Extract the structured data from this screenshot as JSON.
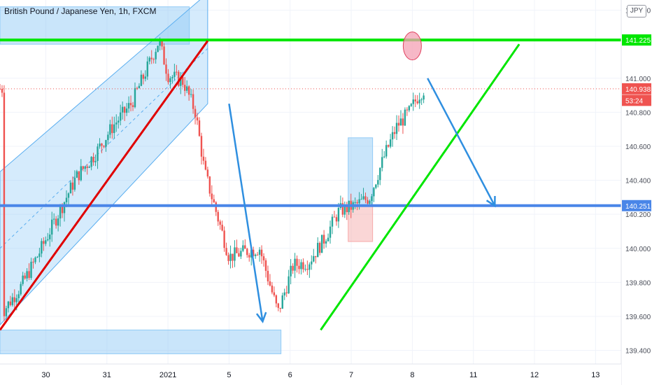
{
  "title": "British Pound / Japanese Yen, 1h, FXCM",
  "currency_badge": "JPY",
  "chart_data": {
    "type": "candlestick",
    "symbol": "British Pound / Japanese Yen",
    "timeframe": "1h",
    "source": "FXCM",
    "ylim": [
      139.32,
      141.46
    ],
    "y_ticks": [
      "141.400",
      "141.000",
      "140.800",
      "140.600",
      "140.400",
      "140.200",
      "140.000",
      "139.800",
      "139.600",
      "139.400"
    ],
    "x_ticks": [
      {
        "label": "30",
        "day": 30
      },
      {
        "label": "31",
        "day": 31
      },
      {
        "label": "2021",
        "day": 32
      },
      {
        "label": "5",
        "day": 33
      },
      {
        "label": "6",
        "day": 34
      },
      {
        "label": "7",
        "day": 35
      },
      {
        "label": "8",
        "day": 36
      },
      {
        "label": "11",
        "day": 37
      },
      {
        "label": "12",
        "day": 38
      },
      {
        "label": "13",
        "day": 39
      }
    ],
    "price_tags": [
      {
        "label": "141.225",
        "value": 141.225,
        "color": "#00e600"
      },
      {
        "label": "140.938",
        "value": 140.938,
        "color": "#ef5350"
      },
      {
        "label": "53:24",
        "value": 140.87,
        "color": "#ef5350"
      },
      {
        "label": "140.251",
        "value": 140.251,
        "color": "#4a86e8"
      }
    ],
    "series": [
      {
        "x": 29.3,
        "y": 139.63
      },
      {
        "x": 29.6,
        "y": 139.78
      },
      {
        "x": 29.9,
        "y": 139.98
      },
      {
        "x": 30.2,
        "y": 140.2
      },
      {
        "x": 30.5,
        "y": 140.42
      },
      {
        "x": 30.8,
        "y": 140.55
      },
      {
        "x": 31.1,
        "y": 140.72
      },
      {
        "x": 31.4,
        "y": 140.85
      },
      {
        "x": 31.65,
        "y": 141.05
      },
      {
        "x": 31.85,
        "y": 141.22
      },
      {
        "x": 32.0,
        "y": 141.02
      },
      {
        "x": 32.25,
        "y": 140.98
      },
      {
        "x": 32.45,
        "y": 140.8
      },
      {
        "x": 32.6,
        "y": 140.45
      },
      {
        "x": 32.8,
        "y": 140.2
      },
      {
        "x": 33.0,
        "y": 139.95
      },
      {
        "x": 33.25,
        "y": 139.98
      },
      {
        "x": 33.5,
        "y": 140.0
      },
      {
        "x": 33.8,
        "y": 139.62
      },
      {
        "x": 34.05,
        "y": 139.9
      },
      {
        "x": 34.3,
        "y": 139.92
      },
      {
        "x": 34.55,
        "y": 140.05
      },
      {
        "x": 34.8,
        "y": 140.22
      },
      {
        "x": 35.05,
        "y": 140.25
      },
      {
        "x": 35.3,
        "y": 140.3
      },
      {
        "x": 35.55,
        "y": 140.55
      },
      {
        "x": 35.75,
        "y": 140.72
      },
      {
        "x": 35.95,
        "y": 140.8
      },
      {
        "x": 36.1,
        "y": 140.9
      },
      {
        "x": 36.2,
        "y": 140.938
      }
    ],
    "ohlc_x_range": [
      29.25,
      36.2
    ],
    "horizontal_lines": [
      {
        "name": "resistance",
        "value": 141.225,
        "color": "#00e600"
      },
      {
        "name": "support",
        "value": 140.251,
        "color": "#4a86e8"
      },
      {
        "name": "last-price",
        "value": 140.938,
        "color": "#ef5350",
        "dotted": true
      }
    ],
    "trend_lines": [
      {
        "name": "red-trendline",
        "from": [
          29.25,
          139.52
        ],
        "to": [
          32.65,
          141.22
        ],
        "color": "#e00000"
      },
      {
        "name": "green-trendline",
        "from": [
          34.5,
          139.52
        ],
        "to": [
          37.75,
          141.2
        ],
        "color": "#00e600"
      }
    ],
    "arrows": [
      {
        "name": "drop-arrow",
        "from": [
          33.0,
          140.85
        ],
        "to": [
          33.55,
          139.57
        ],
        "color": "#2f8fe0"
      },
      {
        "name": "projection-arrow",
        "from": [
          36.25,
          141.0
        ],
        "to": [
          37.35,
          140.25
        ],
        "color": "#2f8fe0"
      }
    ],
    "zones": [
      {
        "name": "top-zone",
        "x": [
          29.25,
          32.35
        ],
        "y": [
          141.2,
          141.42
        ],
        "color": "#88c6f5"
      },
      {
        "name": "bottom-zone",
        "x": [
          29.25,
          33.85
        ],
        "y": [
          139.38,
          139.52
        ],
        "color": "#88c6f5"
      },
      {
        "name": "long-target-box",
        "x": [
          34.95,
          35.35
        ],
        "y": [
          140.25,
          140.65
        ],
        "color": "#88c6f5"
      },
      {
        "name": "long-stop-box",
        "x": [
          34.95,
          35.35
        ],
        "y": [
          140.04,
          140.25
        ],
        "color": "#f5a3a3"
      }
    ],
    "channel": {
      "lower_from": [
        29.25,
        139.55
      ],
      "lower_to": [
        32.65,
        140.85
      ],
      "upper_from": [
        29.25,
        140.45
      ],
      "upper_to": [
        32.65,
        141.5
      ]
    },
    "marker_circle": {
      "x": 36.0,
      "y": 141.19
    }
  }
}
